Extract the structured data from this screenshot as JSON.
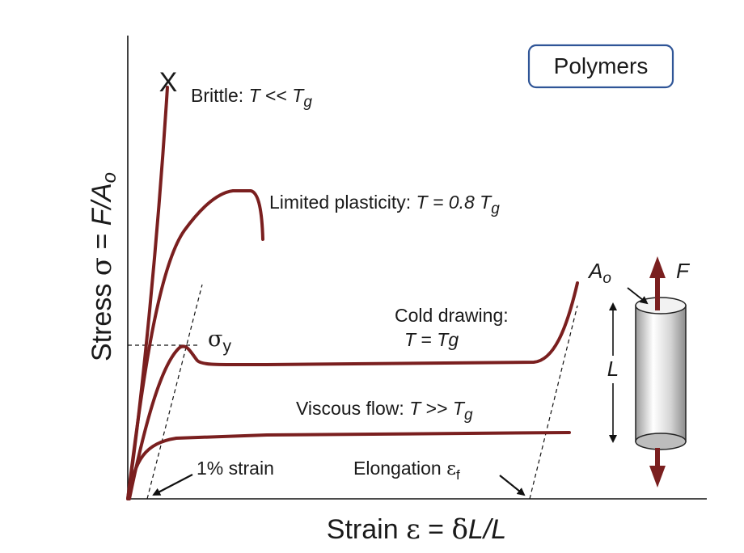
{
  "badge": {
    "text": "Polymers",
    "border": "#2f5597"
  },
  "axes": {
    "y_label_prefix": "Stress ",
    "y_symbol": "σ",
    "y_eq": " = ",
    "y_formula": "F/A",
    "y_sub": "o",
    "x_label_prefix": "Strain ",
    "x_symbol": "ε",
    "x_eq": " = ",
    "x_delta": "δ",
    "x_formula": "L/L"
  },
  "curves": {
    "brittle": {
      "label": "Brittle: ",
      "cond_T": "T",
      "cond_op": " << ",
      "cond_Tg": "T",
      "sub": "g",
      "fracture_mark": "X"
    },
    "limited": {
      "label": "Limited plasticity: ",
      "cond_T": "T",
      "cond_op": " = 0.8 ",
      "cond_Tg": "T",
      "sub": "g"
    },
    "cold": {
      "label_line1": "Cold drawing:",
      "cond_T": "T",
      "cond_op": " = ",
      "cond_Tg": "Tg"
    },
    "viscous": {
      "label": "Viscous flow: ",
      "cond_T": "T",
      "cond_op": " >> ",
      "cond_Tg": "T",
      "sub": "g"
    }
  },
  "annotations": {
    "yield_symbol": "σ",
    "yield_sub": "y",
    "one_percent": "1% strain",
    "elongation": "Elongation ",
    "elong_symbol": "ε",
    "elong_sub": "f"
  },
  "specimen": {
    "area": "A",
    "area_sub": "o",
    "force": "F",
    "length": "L"
  },
  "colors": {
    "curve": "#7a1f1f",
    "arrow": "#7a1f1f"
  }
}
